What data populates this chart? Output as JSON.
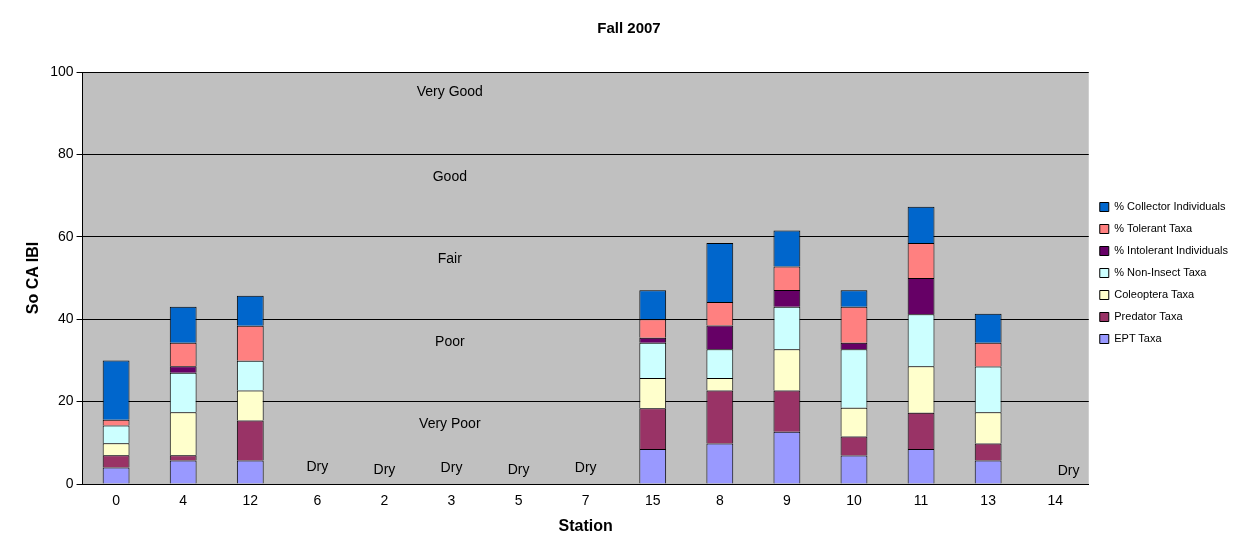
{
  "chart_data": {
    "type": "bar",
    "title": "Fall 2007",
    "xlabel": "Station",
    "ylabel": "So CA IBI",
    "stacked": true,
    "grid": "y",
    "legend": "right",
    "categories": [
      "0",
      "4",
      "12",
      "6",
      "2",
      "3",
      "5",
      "7",
      "15",
      "8",
      "9",
      "10",
      "11",
      "13",
      "14"
    ],
    "ylim": [
      0,
      100
    ],
    "yticks": [
      0,
      20,
      40,
      60,
      80,
      100
    ],
    "series": [
      {
        "name": "EPT Taxa",
        "color": "#9999ff",
        "values": [
          4,
          5.7,
          5.7,
          null,
          null,
          null,
          null,
          null,
          8.5,
          9.8,
          12.7,
          6.9,
          8.5,
          5.7,
          null
        ]
      },
      {
        "name": "Predator Taxa",
        "color": "#993366",
        "values": [
          3,
          1.3,
          9.7,
          null,
          null,
          null,
          null,
          null,
          9.9,
          12.9,
          10,
          4.6,
          8.8,
          4.1,
          null
        ]
      },
      {
        "name": "Coleoptera Taxa",
        "color": "#ffffcc",
        "values": [
          2.9,
          10.4,
          7.3,
          null,
          null,
          null,
          null,
          null,
          7.3,
          3,
          10,
          7,
          11.3,
          7.6,
          null
        ]
      },
      {
        "name": "% Non-Insect Taxa",
        "color": "#ccffff",
        "values": [
          4.3,
          9.6,
          7.2,
          null,
          null,
          null,
          null,
          null,
          8.6,
          7,
          10.3,
          14.2,
          12.6,
          11.1,
          null
        ]
      },
      {
        "name": "% Intolerant Individuals",
        "color": "#660066",
        "values": [
          0,
          1.6,
          0,
          null,
          null,
          null,
          null,
          null,
          1.2,
          5.8,
          4.1,
          1.6,
          8.8,
          0,
          null
        ]
      },
      {
        "name": "% Tolerant Taxa",
        "color": "#ff8080",
        "values": [
          1.4,
          5.7,
          8.5,
          null,
          null,
          null,
          null,
          null,
          4.5,
          5.7,
          5.7,
          8.7,
          8.5,
          5.8,
          null
        ]
      },
      {
        "name": "% Collector Individuals",
        "color": "#0066cc",
        "values": [
          14.4,
          8.7,
          7.3,
          null,
          null,
          null,
          null,
          null,
          7,
          14.3,
          8.7,
          4,
          8.8,
          7,
          null
        ]
      }
    ],
    "annotations": [
      "Very Good",
      "Good",
      "Fair",
      "Poor",
      "Very Poor",
      "Dry",
      "Dry",
      "Dry",
      "Dry",
      "Dry",
      "Dry"
    ]
  }
}
